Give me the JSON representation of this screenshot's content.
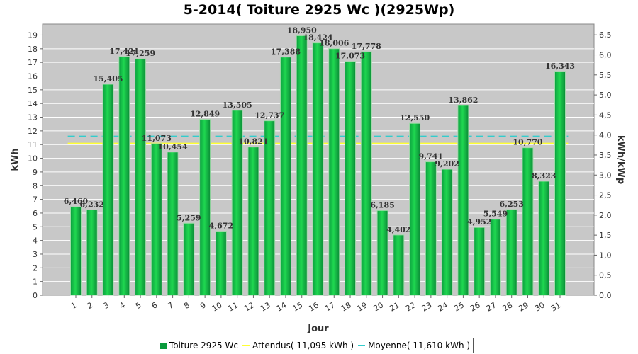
{
  "chart_data": {
    "type": "bar",
    "title": "5-2014( Toiture 2925 Wc )(2925Wp)",
    "xlabel": "Jour",
    "ylabel": "kWh",
    "y2label": "kWh/kWp",
    "ylim": [
      0,
      19.8
    ],
    "y_ticks": [
      "0",
      "1",
      "2",
      "3",
      "4",
      "5",
      "6",
      "7",
      "8",
      "9",
      "10",
      "11",
      "12",
      "13",
      "14",
      "15",
      "16",
      "17",
      "18",
      "19"
    ],
    "y2_ticks": [
      "0,0",
      "0,5",
      "1,0",
      "1,5",
      "2,0",
      "2,5",
      "3,0",
      "3,5",
      "4,0",
      "4,5",
      "5,0",
      "5,5",
      "6,0",
      "6,5"
    ],
    "categories": [
      "1",
      "2",
      "3",
      "4",
      "5",
      "6",
      "7",
      "8",
      "9",
      "10",
      "11",
      "12",
      "13",
      "14",
      "15",
      "16",
      "17",
      "18",
      "19",
      "20",
      "21",
      "22",
      "23",
      "24",
      "25",
      "26",
      "27",
      "28",
      "29",
      "30",
      "31"
    ],
    "series": [
      {
        "name": "Toiture 2925 Wc",
        "values": [
          6.46,
          6.232,
          15.405,
          17.421,
          17.259,
          11.073,
          10.454,
          5.259,
          12.849,
          4.672,
          13.505,
          10.821,
          12.737,
          17.388,
          18.95,
          18.424,
          18.006,
          17.073,
          17.778,
          6.185,
          4.402,
          12.55,
          9.741,
          9.202,
          13.862,
          4.952,
          5.549,
          6.253,
          10.77,
          8.323,
          16.343
        ],
        "labels": [
          "6,460",
          "6,232",
          "15,405",
          "17,421",
          "17,259",
          "11,073",
          "10,454",
          "5,259",
          "12,849",
          "4,672",
          "13,505",
          "10,821",
          "12,737",
          "17,388",
          "18,950",
          "18,424",
          "18,006",
          "17,073",
          "17,778",
          "6,185",
          "4,402",
          "12,550",
          "9,741",
          "9,202",
          "13,862",
          "4,952",
          "5,549",
          "6,253",
          "10,770",
          "8,323",
          "16,343"
        ],
        "color": "#1fd750"
      }
    ],
    "reference_lines": [
      {
        "name": "Attendus( 11,095 kWh )",
        "value": 11.095,
        "color": "#ffff33"
      },
      {
        "name": "Moyenne( 11,610 kWh )",
        "value": 11.61,
        "color": "#33cccc"
      }
    ],
    "legend": "bottom",
    "grid": true
  }
}
